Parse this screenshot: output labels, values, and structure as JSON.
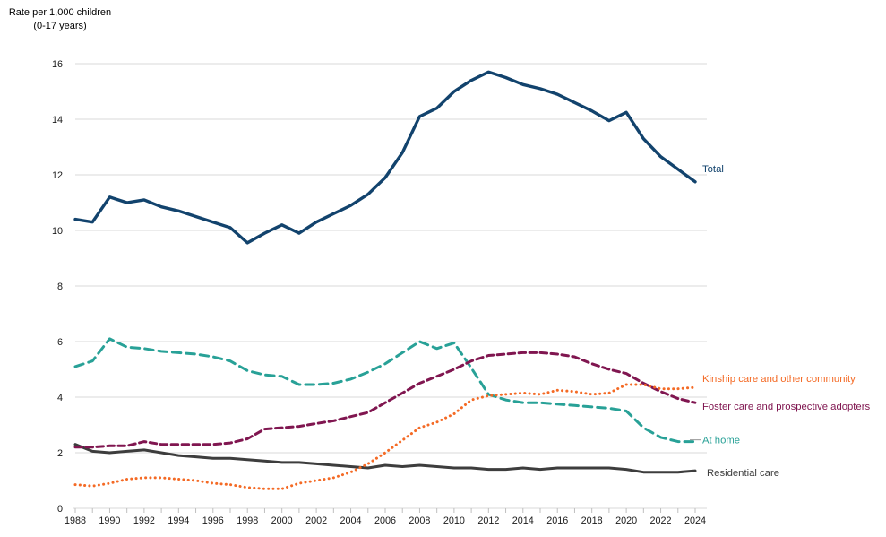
{
  "y_axis_title": {
    "line1": "Rate per 1,000 children",
    "line2": "(0-17 years)"
  },
  "chart_data": {
    "type": "line",
    "title": "",
    "xlabel": "",
    "ylabel": "Rate per 1,000 children (0-17 years)",
    "x": [
      1988,
      1989,
      1990,
      1991,
      1992,
      1993,
      1994,
      1995,
      1996,
      1997,
      1998,
      1999,
      2000,
      2001,
      2002,
      2003,
      2004,
      2005,
      2006,
      2007,
      2008,
      2009,
      2010,
      2011,
      2012,
      2013,
      2014,
      2015,
      2016,
      2017,
      2018,
      2019,
      2020,
      2021,
      2022,
      2023,
      2024
    ],
    "x_tick_label_step": 2,
    "ylim": [
      0,
      16
    ],
    "y_tick_interval": 2,
    "grid": "horizontal",
    "legend_position": "direct-labels-right",
    "gridline_color": "#d9d9d9",
    "tick_color": "#bfbfbf",
    "series": [
      {
        "name": "At home",
        "color": "#28A197",
        "line_style": "dashed",
        "label_leader": true,
        "values": [
          5.1,
          5.3,
          6.1,
          5.8,
          5.75,
          5.65,
          5.6,
          5.55,
          5.45,
          5.3,
          4.95,
          4.8,
          4.75,
          4.45,
          4.45,
          4.5,
          4.65,
          4.9,
          5.2,
          5.6,
          6.0,
          5.75,
          5.95,
          5.05,
          4.1,
          3.9,
          3.8,
          3.8,
          3.75,
          3.7,
          3.65,
          3.6,
          3.5,
          2.9,
          2.55,
          2.4,
          2.4
        ]
      },
      {
        "name": "Residential care",
        "color": "#3D3D3D",
        "line_style": "solid",
        "label_leader": false,
        "values": [
          2.3,
          2.05,
          2.0,
          2.05,
          2.1,
          2.0,
          1.9,
          1.85,
          1.8,
          1.8,
          1.75,
          1.7,
          1.65,
          1.65,
          1.6,
          1.55,
          1.5,
          1.45,
          1.55,
          1.5,
          1.55,
          1.5,
          1.45,
          1.45,
          1.4,
          1.4,
          1.45,
          1.4,
          1.45,
          1.45,
          1.45,
          1.45,
          1.4,
          1.3,
          1.3,
          1.3,
          1.35
        ]
      },
      {
        "name": "Foster care and prospective adopters",
        "color": "#801650",
        "line_style": "dashed",
        "label_leader": false,
        "values": [
          2.2,
          2.2,
          2.25,
          2.25,
          2.4,
          2.3,
          2.3,
          2.3,
          2.3,
          2.35,
          2.5,
          2.85,
          2.9,
          2.95,
          3.05,
          3.15,
          3.3,
          3.45,
          3.8,
          4.15,
          4.5,
          4.75,
          5.0,
          5.3,
          5.5,
          5.55,
          5.6,
          5.6,
          5.55,
          5.45,
          5.2,
          5.0,
          4.85,
          4.5,
          4.2,
          3.95,
          3.8
        ]
      },
      {
        "name": "Kinship care and other community",
        "color": "#F46A25",
        "line_style": "dotted",
        "label_leader": false,
        "values": [
          0.85,
          0.8,
          0.9,
          1.05,
          1.1,
          1.1,
          1.05,
          1.0,
          0.9,
          0.85,
          0.75,
          0.7,
          0.7,
          0.9,
          1.0,
          1.1,
          1.3,
          1.6,
          2.0,
          2.45,
          2.9,
          3.1,
          3.4,
          3.9,
          4.05,
          4.1,
          4.15,
          4.1,
          4.25,
          4.2,
          4.1,
          4.15,
          4.45,
          4.45,
          4.3,
          4.3,
          4.35
        ]
      },
      {
        "name": "Total",
        "color": "#12436D",
        "line_style": "solid",
        "label_leader": false,
        "values": [
          10.4,
          10.3,
          11.2,
          11.0,
          11.1,
          10.85,
          10.7,
          10.5,
          10.3,
          10.1,
          9.55,
          9.9,
          10.2,
          9.9,
          10.3,
          10.6,
          10.9,
          11.3,
          11.9,
          12.8,
          14.1,
          14.4,
          15.0,
          15.4,
          15.7,
          15.5,
          15.25,
          15.1,
          14.9,
          14.6,
          14.3,
          13.95,
          14.25,
          13.3,
          12.65,
          12.2,
          11.75
        ]
      }
    ]
  }
}
